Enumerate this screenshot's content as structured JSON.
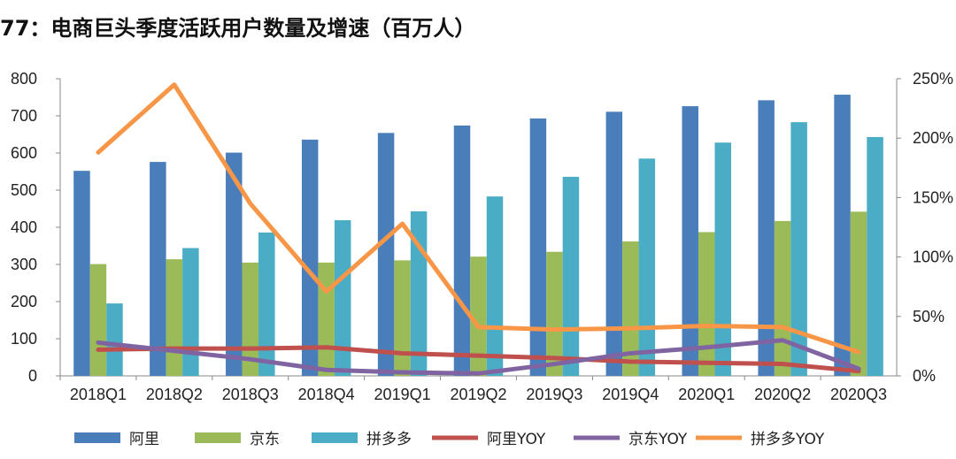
{
  "figure": {
    "number_label": "77",
    "title": "电商巨头季度活跃用户数量及增速（百万人）"
  },
  "chart_data": {
    "type": "bar+line",
    "title": "电商巨头季度活跃用户数量及增速（百万人）",
    "categories": [
      "2018Q1",
      "2018Q2",
      "2018Q3",
      "2018Q4",
      "2019Q1",
      "2019Q2",
      "2019Q3",
      "2019Q4",
      "2020Q1",
      "2020Q2",
      "2020Q3"
    ],
    "y_left": {
      "min": 0,
      "max": 800,
      "step": 100,
      "ticks": [
        "0",
        "100",
        "200",
        "300",
        "400",
        "500",
        "600",
        "700",
        "800"
      ]
    },
    "y_right": {
      "min": 0,
      "max": 2.5,
      "step": 0.5,
      "ticks": [
        "0%",
        "50%",
        "100%",
        "150%",
        "200%",
        "250%"
      ]
    },
    "bar_series": [
      {
        "name": "阿里",
        "color": "#4a7ebb",
        "values": [
          552,
          576,
          601,
          636,
          654,
          674,
          693,
          711,
          726,
          742,
          757
        ]
      },
      {
        "name": "京东",
        "color": "#9bbb59",
        "values": [
          301,
          314,
          305,
          305,
          311,
          321,
          334,
          362,
          387,
          417,
          442
        ]
      },
      {
        "name": "拼多多",
        "color": "#4bacc6",
        "values": [
          195,
          344,
          386,
          419,
          443,
          483,
          536,
          585,
          628,
          683,
          643
        ]
      }
    ],
    "line_series": [
      {
        "name": "阿里YOY",
        "color": "#c0504d",
        "values": [
          0.22,
          0.23,
          0.23,
          0.24,
          0.19,
          0.17,
          0.15,
          0.12,
          0.11,
          0.1,
          0.04
        ]
      },
      {
        "name": "京东YOY",
        "color": "#8064a2",
        "values": [
          0.28,
          0.21,
          0.14,
          0.05,
          0.03,
          0.02,
          0.1,
          0.19,
          0.24,
          0.3,
          0.06
        ]
      },
      {
        "name": "拼多多YOY",
        "color": "#f79646",
        "values": [
          1.88,
          2.45,
          1.45,
          0.71,
          1.28,
          0.41,
          0.39,
          0.4,
          0.42,
          0.41,
          0.2
        ]
      }
    ],
    "legend": {
      "position": "bottom",
      "entries": [
        "阿里",
        "京东",
        "拼多多",
        "阿里YOY",
        "京东YOY",
        "拼多多YOY"
      ]
    },
    "grid": false
  }
}
